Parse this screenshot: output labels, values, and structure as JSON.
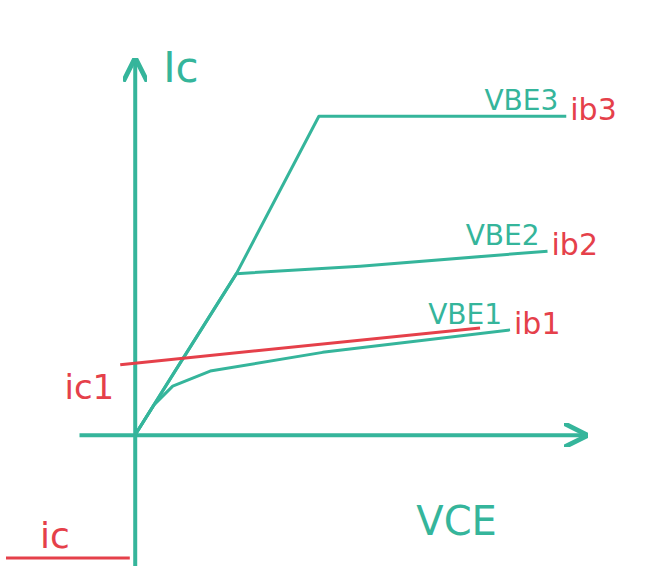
{
  "chart_data": {
    "type": "line",
    "x_label": "VCE",
    "y_label": "Ic",
    "xlim": [
      -1.5,
      12
    ],
    "ylim": [
      -3.5,
      10
    ],
    "tick_labels": false,
    "grid": false,
    "series": [
      {
        "name": "VBE1",
        "label": "ib1",
        "color": "#35b59b",
        "x": [
          0,
          0.5,
          1,
          2,
          5,
          10
        ],
        "values": [
          0,
          0.8,
          1.3,
          1.7,
          2.2,
          2.8
        ]
      },
      {
        "name": "VBE2",
        "label": "ib2",
        "color": "#35b59b",
        "x": [
          0,
          1,
          2.7,
          6,
          11
        ],
        "values": [
          0,
          1.6,
          4.3,
          4.5,
          4.9
        ]
      },
      {
        "name": "VBE3",
        "label": "ib3",
        "color": "#35b59b",
        "x": [
          0,
          1,
          2.7,
          4.9,
          11.5
        ],
        "values": [
          0,
          1.6,
          4.3,
          8.5,
          8.5
        ]
      },
      {
        "name": "ic1",
        "color": "#e5404a",
        "x": [
          -0.4,
          9.2
        ],
        "values": [
          1.87,
          2.85
        ]
      }
    ],
    "annotations": [
      "ic"
    ]
  }
}
